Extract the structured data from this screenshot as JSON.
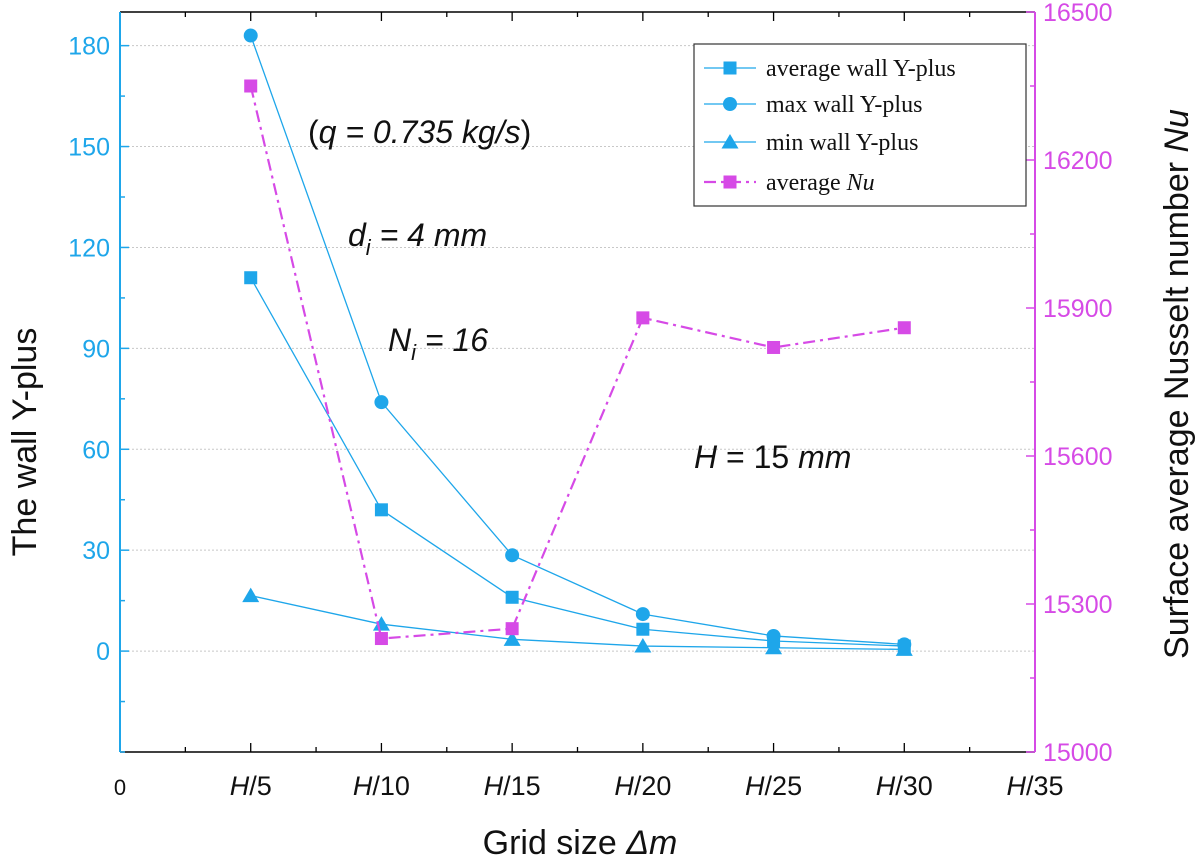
{
  "chart_data": {
    "type": "line",
    "x_tick_labels": [
      {
        "italic": "",
        "rest": "0"
      },
      {
        "italic": "H",
        "rest": "/5"
      },
      {
        "italic": "H",
        "rest": "/10"
      },
      {
        "italic": "H",
        "rest": "/15"
      },
      {
        "italic": "H",
        "rest": "/20"
      },
      {
        "italic": "H",
        "rest": "/25"
      },
      {
        "italic": "H",
        "rest": "/30"
      },
      {
        "italic": "H",
        "rest": "/35"
      }
    ],
    "x_values": [
      1,
      2,
      3,
      4,
      5,
      6
    ],
    "xlim": [
      0,
      7
    ],
    "xlabel": {
      "text": "Grid size ",
      "italic": "Δm"
    },
    "ylabel_left": "The wall Y-plus",
    "ylabel_right": {
      "text": "Surface average Nusselt number ",
      "italic": "Nu"
    },
    "ylim_left": [
      -30,
      190
    ],
    "yticks_left": [
      0,
      30,
      60,
      90,
      120,
      150,
      180
    ],
    "ylim_right": [
      15000,
      16500
    ],
    "yticks_right": [
      15000,
      15300,
      15600,
      15900,
      16200,
      16500
    ],
    "series": [
      {
        "name": "average wall Y-plus",
        "axis": "left",
        "marker": "square",
        "values": [
          111,
          42,
          16,
          6.5,
          3,
          1.5
        ]
      },
      {
        "name": "max wall Y-plus",
        "axis": "left",
        "marker": "circle",
        "values": [
          183,
          74,
          28.5,
          11,
          4.5,
          2
        ]
      },
      {
        "name": "min wall Y-plus",
        "axis": "left",
        "marker": "triangle",
        "values": [
          16.5,
          8,
          3.5,
          1.5,
          1,
          0.5
        ]
      },
      {
        "name_prefix": "average ",
        "name_italic": "Nu",
        "axis": "right",
        "marker": "square",
        "dashed": true,
        "values": [
          16350,
          15230,
          15250,
          15880,
          15820,
          15860
        ]
      }
    ],
    "annotations": {
      "q": {
        "pre": "(",
        "body": "q = 0.735 kg/s",
        "post": ")"
      },
      "d": {
        "base": "d",
        "sub": "i",
        "rest": " = 4 mm"
      },
      "n": {
        "base": "N",
        "sub": "i",
        "rest": " = 16"
      },
      "h": {
        "base": "H",
        "mid": " = 15 ",
        "unit": "mm"
      }
    },
    "legend_position": "top-right"
  },
  "colors": {
    "blue": "#1ea6ea",
    "magenta": "#d64ae6",
    "grid": "#c8c8c8",
    "text": "#111111"
  }
}
